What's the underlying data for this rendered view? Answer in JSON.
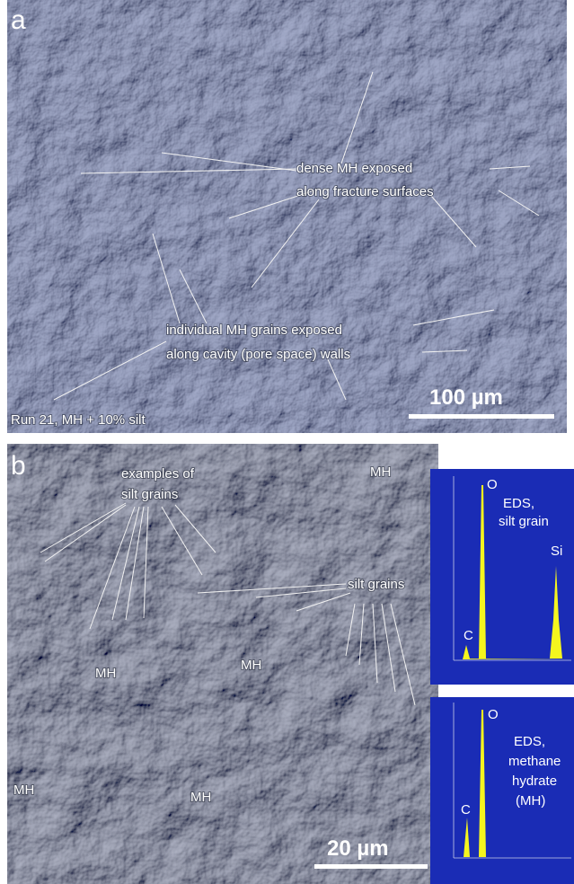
{
  "panel_a": {
    "label": "a",
    "annotation_1": [
      "dense MH exposed",
      "along fracture surfaces"
    ],
    "annotation_2": [
      "individual MH grains exposed",
      "along cavity (pore space) walls"
    ],
    "scale_bar": "100 µm",
    "sample": "Run 21, MH + 10% silt"
  },
  "panel_b": {
    "label": "b",
    "annotation_1": [
      "examples of",
      "silt grains"
    ],
    "annotation_2": "silt grains",
    "mh_labels": [
      "MH",
      "MH",
      "MH",
      "MH",
      "MH"
    ],
    "scale_bar": "20 µm"
  },
  "eds_silt": {
    "title": [
      "EDS,",
      "silt grain"
    ],
    "peaks": [
      "C",
      "O",
      "Si"
    ]
  },
  "eds_mh": {
    "title": [
      "EDS,",
      "methane",
      "hydrate",
      "(MH)"
    ],
    "peaks": [
      "C",
      "O"
    ]
  }
}
